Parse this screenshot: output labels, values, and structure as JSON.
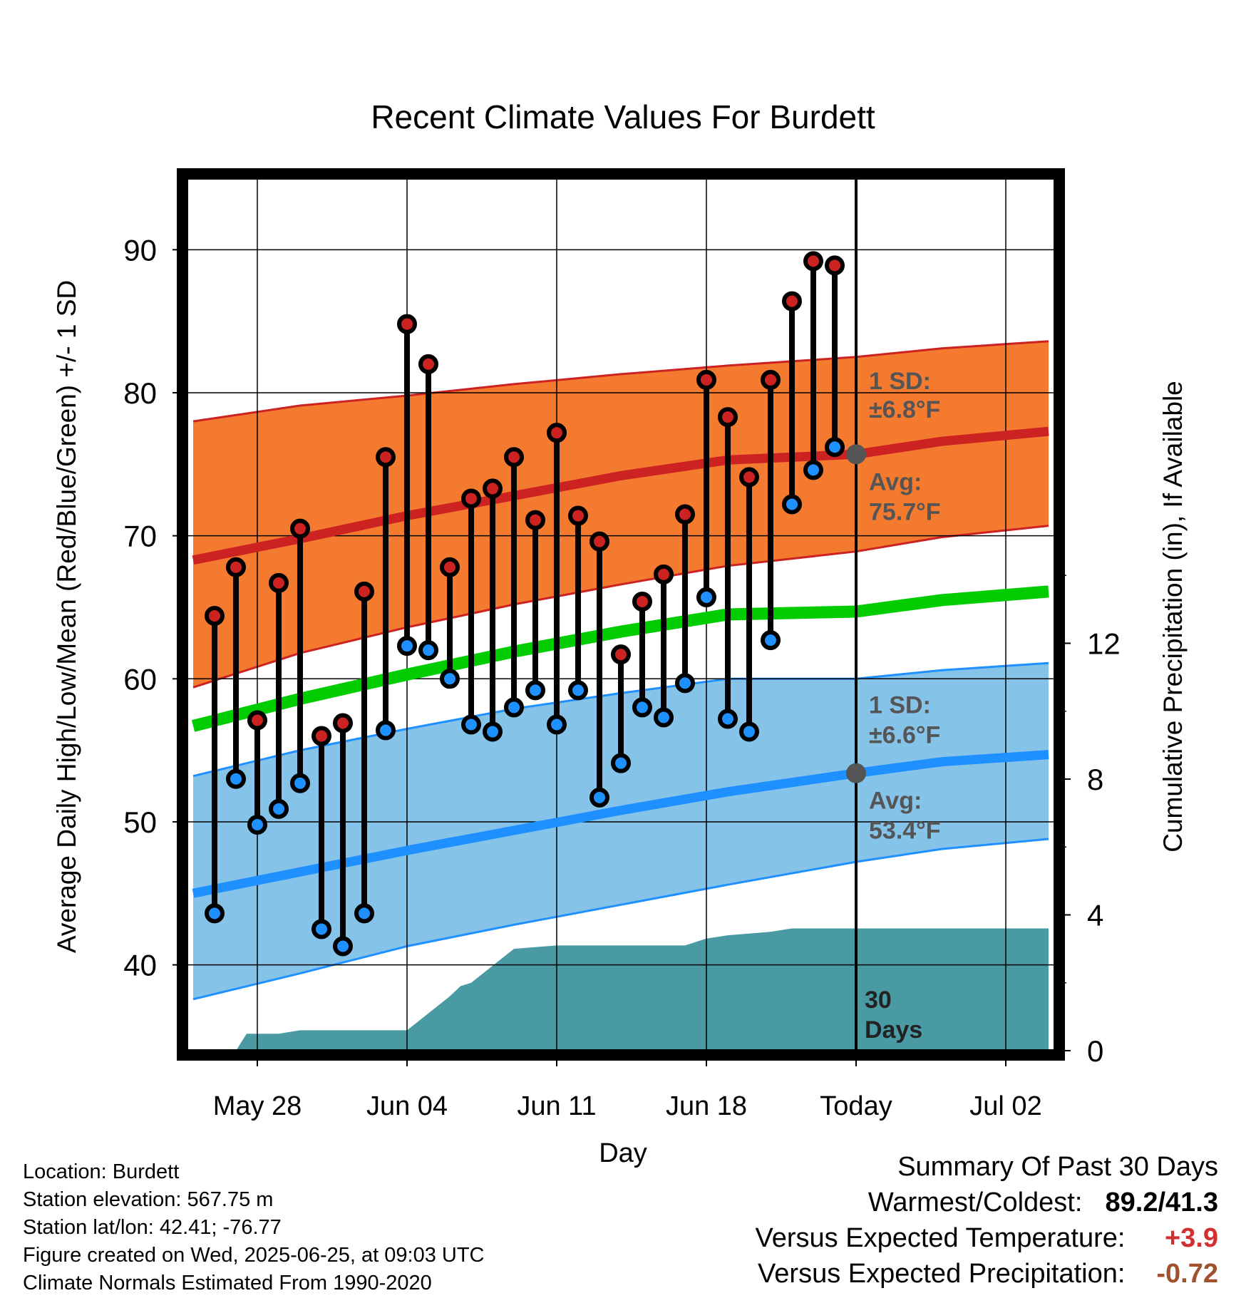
{
  "chart_data": {
    "type": "line",
    "title": "Recent Climate Values For Burdett",
    "xlabel": "Day",
    "ylabel": "Average Daily High/Low/Mean (Red/Blue/Green) +/- 1 SD",
    "y2label": "Cumulative Precipitation (in), If Available",
    "ylim": [
      34,
      95
    ],
    "y2lim": [
      0,
      25.7
    ],
    "yticks": [
      "40",
      "50",
      "60",
      "70",
      "80",
      "90"
    ],
    "y2ticks": [
      "0",
      "4",
      "8",
      "12"
    ],
    "xticks": [
      {
        "day": 3,
        "label": "May 28"
      },
      {
        "day": 10,
        "label": "Jun 04"
      },
      {
        "day": 17,
        "label": "Jun 11"
      },
      {
        "day": 24,
        "label": "Jun 18"
      },
      {
        "day": 31,
        "label": "Today"
      },
      {
        "day": 38,
        "label": "Jul 02"
      }
    ],
    "grid": true,
    "day_start_note": "x values are days from May 25",
    "xlim": [
      -0.3,
      40.3
    ],
    "today_day": 31,
    "days_label": "30\nDays",
    "series": [
      {
        "name": "Daily High",
        "color": "#cc2222",
        "days": [
          1,
          2,
          3,
          4,
          5,
          6,
          7,
          8,
          9,
          10,
          11,
          12,
          13,
          14,
          15,
          16,
          17,
          18,
          19,
          20,
          21,
          22,
          23,
          24,
          25,
          26,
          27,
          28,
          29,
          30
        ],
        "values": [
          64.4,
          67.8,
          57.1,
          66.7,
          70.5,
          56.0,
          56.9,
          66.1,
          75.5,
          84.8,
          82.0,
          67.8,
          72.6,
          73.3,
          75.5,
          71.1,
          77.2,
          71.4,
          69.6,
          61.7,
          65.4,
          67.3,
          71.5,
          80.9,
          78.3,
          74.1,
          80.9,
          86.4,
          89.2,
          88.9
        ]
      },
      {
        "name": "Daily Low",
        "color": "#1e90ff",
        "days": [
          1,
          2,
          3,
          4,
          5,
          6,
          7,
          8,
          9,
          10,
          11,
          12,
          13,
          14,
          15,
          16,
          17,
          18,
          19,
          20,
          21,
          22,
          23,
          24,
          25,
          26,
          27,
          28,
          29,
          30
        ],
        "values": [
          43.6,
          53.0,
          49.8,
          50.9,
          52.7,
          42.5,
          41.3,
          43.6,
          56.4,
          62.3,
          62.0,
          60.0,
          56.8,
          56.3,
          58.0,
          59.2,
          56.8,
          59.2,
          51.7,
          54.1,
          58.0,
          57.3,
          59.7,
          65.7,
          57.2,
          56.3,
          62.7,
          72.2,
          74.6,
          76.2
        ]
      }
    ],
    "normals": {
      "days": [
        0,
        5,
        10,
        15,
        20,
        25,
        31,
        35,
        40
      ],
      "high_avg": [
        68.3,
        69.8,
        71.4,
        72.8,
        74.2,
        75.3,
        75.7,
        76.6,
        77.3
      ],
      "high_upper": [
        78.0,
        79.1,
        79.8,
        80.6,
        81.3,
        81.9,
        82.5,
        83.1,
        83.6
      ],
      "high_lower": [
        59.4,
        61.8,
        63.6,
        65.2,
        66.6,
        67.9,
        68.9,
        69.9,
        70.7
      ],
      "mean": [
        56.7,
        58.6,
        60.3,
        61.9,
        63.3,
        64.5,
        64.7,
        65.5,
        66.1
      ],
      "low_avg": [
        45.0,
        46.5,
        48.0,
        49.4,
        50.8,
        52.1,
        53.4,
        54.2,
        54.7
      ],
      "low_upper": [
        53.2,
        55.0,
        56.5,
        57.9,
        59.0,
        60.0,
        60.0,
        60.6,
        61.1
      ],
      "low_lower": [
        37.6,
        39.4,
        41.3,
        42.8,
        44.2,
        45.6,
        47.2,
        48.1,
        48.8
      ],
      "colors": {
        "high_band": "#f47a30",
        "low_band": "#86c3e8",
        "mean_line": "#00cc00",
        "high_line": "#cc2222",
        "low_line": "#1e90ff",
        "marker": "#555555"
      },
      "high_sd_label": "1 SD:",
      "high_sd_value": "±6.8°F",
      "high_avg_label": "Avg:",
      "high_avg_value": "75.7°F",
      "low_sd_label": "1 SD:",
      "low_sd_value": "±6.6°F",
      "low_avg_label": "Avg:",
      "low_avg_value": "53.4°F"
    },
    "precip_cumulative": {
      "color": "#4a9aa4",
      "days": [
        2,
        2.5,
        4,
        5,
        6,
        7,
        8,
        9,
        10,
        11,
        12,
        12.5,
        13,
        14,
        15,
        17,
        18,
        20,
        23,
        24,
        25,
        27,
        28,
        29,
        30,
        31,
        40
      ],
      "values": [
        0,
        0.5,
        0.5,
        0.6,
        0.6,
        0.6,
        0.6,
        0.6,
        0.6,
        1.1,
        1.6,
        1.9,
        2.0,
        2.5,
        3.0,
        3.1,
        3.1,
        3.1,
        3.1,
        3.3,
        3.4,
        3.5,
        3.6,
        3.6,
        3.6,
        3.6,
        3.6
      ]
    }
  },
  "footer": {
    "location": "Location: Burdett",
    "elevation": "Station elevation: 567.75 m",
    "latlon": "Station lat/lon: 42.41; -76.77",
    "created": "Figure created on Wed, 2025-06-25, at 09:03 UTC",
    "normals": "Climate Normals Estimated From 1990-2020"
  },
  "summary": {
    "title": "Summary Of Past 30 Days",
    "warm_cold_label": "Warmest/Coldest:",
    "warm_cold_value": "89.2/41.3",
    "temp_label": "Versus Expected Temperature:",
    "temp_value": "+3.9",
    "temp_color": "#d03030",
    "precip_label": "Versus Expected Precipitation:",
    "precip_value": "-0.72",
    "precip_color": "#a0522d"
  }
}
